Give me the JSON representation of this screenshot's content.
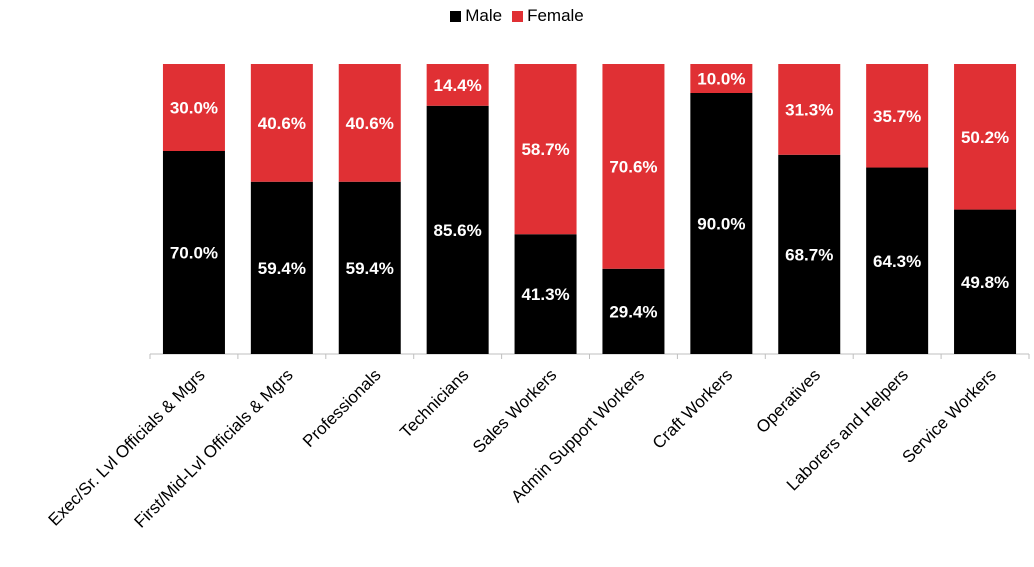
{
  "chart_data": {
    "type": "bar",
    "stacked": true,
    "percent_stacked": true,
    "categories": [
      "Exec/Sr. Lvl Officials & Mgrs",
      "First/Mid-Lvl Officials & Mgrs",
      "Professionals",
      "Technicians",
      "Sales Workers",
      "Admin Support Workers",
      "Craft Workers",
      "Operatives",
      "Laborers and Helpers",
      "Service Workers"
    ],
    "series": [
      {
        "name": "Male",
        "color": "#000000",
        "values": [
          70.0,
          59.4,
          59.4,
          85.6,
          41.3,
          29.4,
          90.0,
          68.7,
          64.3,
          49.8
        ],
        "labels": [
          "70.0%",
          "59.4%",
          "59.4%",
          "85.6%",
          "41.3%",
          "29.4%",
          "90.0%",
          "68.7%",
          "64.3%",
          "49.8%"
        ]
      },
      {
        "name": "Female",
        "color": "#e03034",
        "values": [
          30.0,
          40.6,
          40.6,
          14.4,
          58.7,
          70.6,
          10.0,
          31.3,
          35.7,
          50.2
        ],
        "labels": [
          "30.0%",
          "40.6%",
          "40.6%",
          "14.4%",
          "58.7%",
          "70.6%",
          "10.0%",
          "31.3%",
          "35.7%",
          "50.2%"
        ]
      }
    ],
    "ylim": [
      0,
      100
    ],
    "grid": false,
    "legend_position": "top-center",
    "xlabel": "",
    "ylabel": ""
  }
}
